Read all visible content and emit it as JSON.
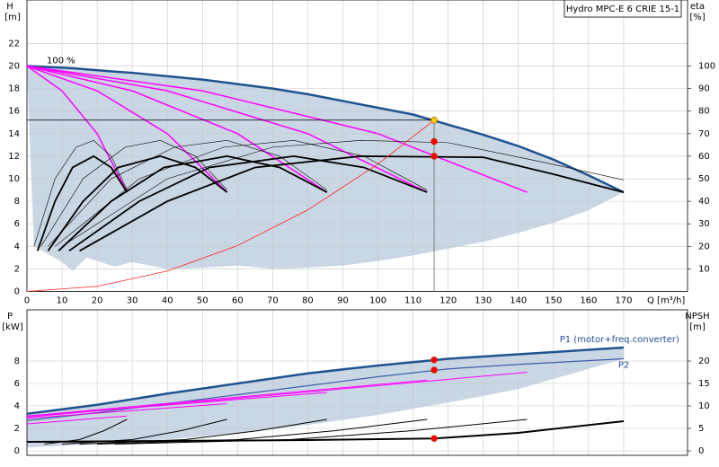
{
  "chart_data": [
    {
      "type": "line",
      "title": "Hydro MPC-E 6 CRIE 15-1",
      "annotation": "100 %",
      "y_label": "H",
      "y_unit": "[m]",
      "y2_label": "eta",
      "y2_unit": "[%]",
      "x_label": "Q [m³/h]",
      "xlim": [
        0,
        188.2
      ],
      "ylim": [
        0,
        25.86
      ],
      "y2lim": [
        0,
        129.3
      ],
      "xticks": [
        0,
        10,
        20,
        30,
        40,
        50,
        60,
        70,
        80,
        90,
        100,
        110,
        120,
        130,
        140,
        150,
        160,
        170
      ],
      "yticks": [
        0,
        2,
        4,
        6,
        8,
        10,
        12,
        14,
        16,
        18,
        20,
        22
      ],
      "y2ticks": [
        10,
        20,
        30,
        40,
        50,
        60,
        70,
        80,
        90,
        100
      ],
      "grid": true,
      "xtick_labels": true,
      "duty_lines": true,
      "area": {
        "color": "#c9d6e3",
        "line_color": "#1f5390",
        "x": [
          0,
          2,
          10,
          13,
          17,
          25,
          30,
          40,
          50,
          60,
          70,
          80,
          90,
          100,
          110,
          120,
          130,
          140,
          150,
          160,
          170
        ],
        "upper": [
          20,
          19.97,
          19.85,
          19.8,
          19.7,
          19.5,
          19.4,
          19.1,
          18.8,
          18.4,
          18.0,
          17.5,
          16.9,
          16.3,
          15.7,
          14.8,
          13.9,
          12.9,
          11.7,
          10.3,
          8.8
        ],
        "lower": [
          20,
          4,
          2.6,
          1.8,
          3,
          2.2,
          2.6,
          2,
          2.1,
          2.3,
          2,
          2.1,
          2.3,
          2.7,
          3.2,
          3.8,
          4.4,
          5.2,
          6.1,
          7.2,
          8.8
        ]
      },
      "series": [
        {
          "color": "#ff00ff",
          "width": 1.5,
          "x": [
            0,
            10,
            20,
            28.5
          ],
          "values": [
            20,
            17.8,
            14,
            8.8
          ]
        },
        {
          "color": "#ff00ff",
          "width": 1.5,
          "x": [
            0,
            20,
            40,
            57
          ],
          "values": [
            20,
            17.8,
            14,
            8.8
          ]
        },
        {
          "color": "#ff00ff",
          "width": 1.5,
          "x": [
            0,
            30,
            60,
            85.5
          ],
          "values": [
            20,
            17.8,
            14,
            8.8
          ]
        },
        {
          "color": "#ff00ff",
          "width": 1.5,
          "x": [
            0,
            40,
            80,
            114
          ],
          "values": [
            20,
            17.8,
            14,
            8.8
          ]
        },
        {
          "color": "#ff00ff",
          "width": 1.5,
          "x": [
            0,
            50,
            100,
            142.5
          ],
          "values": [
            20,
            17.8,
            14,
            8.8
          ]
        },
        {
          "color": "#000000",
          "width": 0.6,
          "axis": "y2",
          "x": [
            2,
            8,
            14,
            19,
            24,
            28.5
          ],
          "values": [
            20,
            50,
            64,
            67,
            60,
            45
          ]
        },
        {
          "color": "#000000",
          "width": 0.6,
          "axis": "y2",
          "x": [
            4,
            16,
            28,
            38,
            48,
            57
          ],
          "values": [
            20,
            50,
            64,
            67,
            60,
            45
          ]
        },
        {
          "color": "#000000",
          "width": 0.6,
          "axis": "y2",
          "x": [
            6,
            24,
            42,
            57,
            72,
            85.5
          ],
          "values": [
            20,
            50,
            64,
            67,
            60,
            45
          ]
        },
        {
          "color": "#000000",
          "width": 0.6,
          "axis": "y2",
          "x": [
            8,
            32,
            56,
            76,
            96,
            114
          ],
          "values": [
            20,
            50,
            64,
            67,
            60,
            45
          ]
        },
        {
          "color": "#000000",
          "width": 0.6,
          "axis": "y2",
          "x": [
            10,
            40,
            70,
            95,
            120,
            145,
            170
          ],
          "values": [
            20,
            50,
            64,
            67,
            66,
            58,
            49.5
          ]
        },
        {
          "color": "#000000",
          "width": 1.8,
          "axis": "y2",
          "x": [
            3,
            8,
            13,
            19,
            24,
            28.5
          ],
          "values": [
            18,
            40,
            55,
            60,
            55,
            44
          ]
        },
        {
          "color": "#000000",
          "width": 1.8,
          "axis": "y2",
          "x": [
            6,
            16,
            26,
            38,
            48,
            57
          ],
          "values": [
            18,
            40,
            55,
            60,
            55,
            44
          ]
        },
        {
          "color": "#000000",
          "width": 1.8,
          "axis": "y2",
          "x": [
            9,
            24,
            39,
            57,
            72,
            85.5
          ],
          "values": [
            18,
            40,
            55,
            60,
            55,
            44
          ]
        },
        {
          "color": "#000000",
          "width": 1.8,
          "axis": "y2",
          "x": [
            12,
            32,
            52,
            76,
            96,
            114
          ],
          "values": [
            18,
            40,
            55,
            60,
            55,
            44
          ]
        },
        {
          "color": "#000000",
          "width": 1.8,
          "axis": "y2",
          "x": [
            15,
            40,
            65,
            95,
            130,
            150,
            170
          ],
          "values": [
            18,
            40,
            55,
            60,
            59.5,
            52,
            44
          ]
        },
        {
          "color": "#ff2020",
          "width": 0.8,
          "x": [
            0,
            20,
            40,
            60,
            80,
            100,
            116
          ],
          "values": [
            0,
            0.45,
            1.81,
            4.07,
            7.23,
            11.3,
            15.2
          ]
        }
      ],
      "points": [
        {
          "x": 116,
          "value": 15.2,
          "color": "#ffcc00"
        },
        {
          "x": 116,
          "value": 66.5,
          "axis": "y2",
          "color": "#ff0000"
        },
        {
          "x": 116,
          "value": 60,
          "axis": "y2",
          "color": "#ff0000"
        }
      ]
    },
    {
      "type": "line",
      "y_label": "P",
      "y_unit": "[kW]",
      "y2_label": "NPSH",
      "y2_unit": "[m]",
      "xlim": [
        0,
        188.2
      ],
      "ylim": [
        -0.4,
        12.56
      ],
      "y2lim": [
        -1,
        31.4
      ],
      "xticks": [
        10,
        20,
        30,
        40,
        50,
        60,
        70,
        80,
        90,
        100,
        110,
        120,
        130,
        140,
        150,
        160,
        170
      ],
      "yticks": [
        0,
        2,
        4,
        6,
        8
      ],
      "y2ticks": [
        0,
        5,
        10,
        15,
        20
      ],
      "grid": true,
      "xtick_labels": false,
      "duty_lines": false,
      "area": {
        "color": "#c9d6e3",
        "line_color": "#1f5390",
        "name": "P1 (motor+freq.converter)",
        "x": [
          0,
          20,
          40,
          60,
          80,
          100,
          120,
          140,
          170
        ],
        "upper": [
          3.3,
          4.1,
          5.1,
          6.0,
          6.9,
          7.6,
          8.2,
          8.6,
          9.2
        ],
        "lower": [
          0.3,
          0.6,
          1.0,
          1.6,
          2.3,
          3.2,
          4.3,
          5.5,
          8.2
        ]
      },
      "series": [
        {
          "name": "P2",
          "color": "#3a5fa8",
          "width": 1.2,
          "x": [
            0,
            20,
            40,
            60,
            80,
            100,
            120,
            140,
            170
          ],
          "values": [
            2.7,
            3.4,
            4.2,
            5.0,
            5.8,
            6.6,
            7.3,
            7.7,
            8.2
          ]
        },
        {
          "color": "#ff00ff",
          "width": 1,
          "x": [
            0,
            28.5
          ],
          "values": [
            2.4,
            3.1
          ]
        },
        {
          "color": "#ff00ff",
          "width": 1,
          "x": [
            0,
            57
          ],
          "values": [
            2.9,
            4.2
          ]
        },
        {
          "color": "#ff00ff",
          "width": 1,
          "x": [
            0,
            85.5
          ],
          "values": [
            3.1,
            5.2
          ]
        },
        {
          "color": "#ff00ff",
          "width": 1,
          "x": [
            0,
            114
          ],
          "values": [
            3.1,
            6.3
          ]
        },
        {
          "color": "#ff00ff",
          "width": 1,
          "x": [
            0,
            142.5
          ],
          "values": [
            3.0,
            7.0
          ]
        },
        {
          "color": "#000000",
          "width": 1,
          "axis": "y2",
          "x": [
            5,
            15,
            22,
            28.5
          ],
          "values": [
            1.5,
            2.5,
            4.5,
            7
          ]
        },
        {
          "color": "#000000",
          "width": 1,
          "axis": "y2",
          "x": [
            10,
            30,
            44,
            57
          ],
          "values": [
            1.5,
            2.5,
            4.5,
            7
          ]
        },
        {
          "color": "#000000",
          "width": 1,
          "axis": "y2",
          "x": [
            15,
            45,
            66,
            85.5
          ],
          "values": [
            1.5,
            2.5,
            4.5,
            7
          ]
        },
        {
          "color": "#000000",
          "width": 1,
          "axis": "y2",
          "x": [
            20,
            60,
            88,
            114
          ],
          "values": [
            1.5,
            2.5,
            4.5,
            7
          ]
        },
        {
          "color": "#000000",
          "width": 1,
          "axis": "y2",
          "x": [
            25,
            75,
            110,
            142.5
          ],
          "values": [
            1.5,
            2.5,
            4.5,
            7
          ]
        },
        {
          "color": "#000000",
          "width": 2,
          "axis": "y2",
          "x": [
            0,
            40,
            80,
            116,
            140,
            170
          ],
          "values": [
            2,
            2.2,
            2.4,
            2.75,
            4,
            6.6
          ]
        }
      ],
      "points": [
        {
          "x": 116,
          "value": 8.1,
          "color": "#ff0000"
        },
        {
          "x": 116,
          "value": 7.2,
          "color": "#ff0000"
        },
        {
          "x": 116,
          "value": 2.75,
          "axis": "y2",
          "color": "#ff0000"
        }
      ]
    }
  ]
}
